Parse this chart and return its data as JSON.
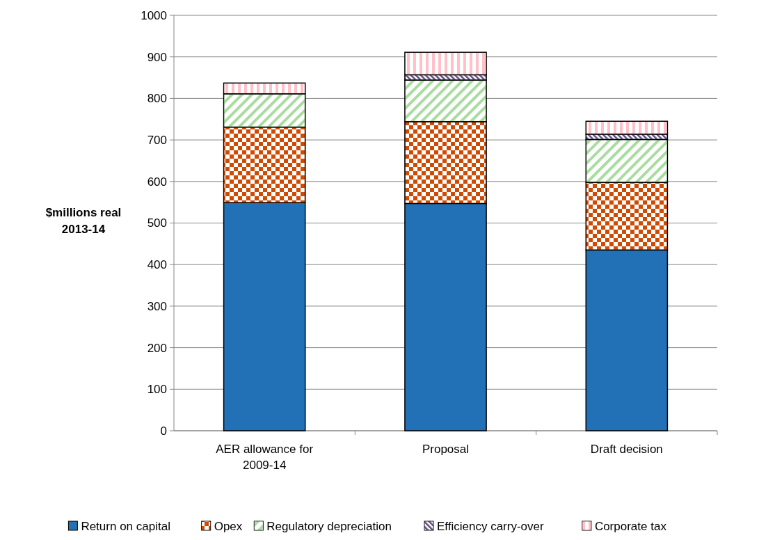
{
  "chart_data": {
    "type": "bar",
    "stacked": true,
    "categories": [
      "AER allowance for 2009-14",
      "Proposal",
      "Draft decision"
    ],
    "ylabel": "$millions real 2013-14",
    "ylim": [
      0,
      1000
    ],
    "yticks": [
      0,
      100,
      200,
      300,
      400,
      500,
      600,
      700,
      800,
      900,
      1000
    ],
    "grid": "y",
    "legend": "bottom",
    "series": [
      {
        "name": "Return on capital",
        "color": "#2270b5",
        "values": [
          549,
          547,
          435
        ]
      },
      {
        "name": "Opex",
        "color": "#d04a02",
        "values": [
          182,
          197,
          163
        ]
      },
      {
        "name": "Regulatory depreciation",
        "color": "#a9dca0",
        "values": [
          80,
          100,
          103
        ]
      },
      {
        "name": "Efficiency carry-over",
        "color": "#5b4a7a",
        "values": [
          0,
          13,
          13
        ]
      },
      {
        "name": "Corporate tax",
        "color": "#ffc0c8",
        "values": [
          26,
          54,
          31
        ]
      }
    ]
  }
}
